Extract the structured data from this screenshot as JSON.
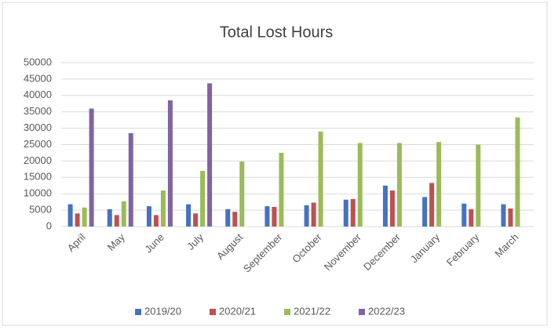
{
  "chart_data": {
    "type": "bar",
    "title": "Total Lost Hours",
    "categories": [
      "April",
      "May",
      "June",
      "July",
      "August",
      "September",
      "October",
      "November",
      "December",
      "January",
      "February",
      "March"
    ],
    "series": [
      {
        "name": "2019/20",
        "color": "#4472c4",
        "values": [
          6800,
          5300,
          6200,
          6800,
          5300,
          6200,
          6500,
          8200,
          12500,
          9000,
          7000,
          6800
        ]
      },
      {
        "name": "2020/21",
        "color": "#c0504d",
        "values": [
          4000,
          3500,
          3500,
          4000,
          4500,
          6000,
          7300,
          8400,
          11000,
          13300,
          5300,
          5500
        ]
      },
      {
        "name": "2021/22",
        "color": "#9bbb59",
        "values": [
          5800,
          7700,
          11000,
          17000,
          19800,
          22500,
          29000,
          25500,
          25500,
          25800,
          25000,
          33300
        ]
      },
      {
        "name": "2022/23",
        "color": "#8064a2",
        "values": [
          36000,
          28500,
          38500,
          43700,
          null,
          null,
          null,
          null,
          null,
          null,
          null,
          null
        ]
      }
    ],
    "ylim": [
      0,
      50000
    ],
    "yticks": [
      0,
      5000,
      10000,
      15000,
      20000,
      25000,
      30000,
      35000,
      40000,
      45000,
      50000
    ],
    "grid": true,
    "legend": "bottom"
  }
}
